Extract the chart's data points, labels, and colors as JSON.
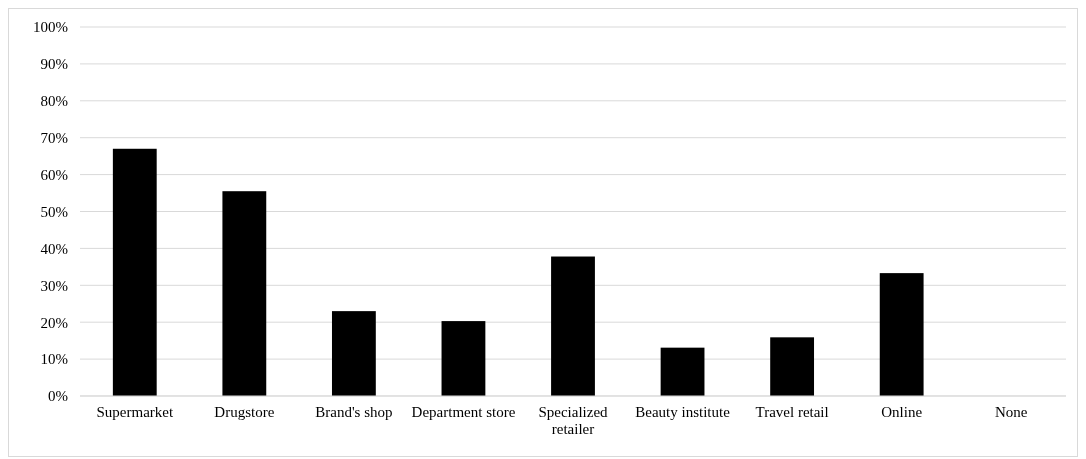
{
  "chart_data": {
    "type": "bar",
    "categories": [
      "Supermarket",
      "Drugstore",
      "Brand's shop",
      "Department store",
      "Specialized retailer",
      "Beauty institute",
      "Travel retail",
      "Online",
      "None"
    ],
    "values": [
      67,
      55.5,
      23,
      20.3,
      37.8,
      13.1,
      15.9,
      33.3,
      0
    ],
    "color": "#000000",
    "ylim": [
      0,
      100
    ],
    "yticks": [
      {
        "value": 0,
        "label": "0%"
      },
      {
        "value": 10,
        "label": "10%"
      },
      {
        "value": 20,
        "label": "20%"
      },
      {
        "value": 30,
        "label": "30%"
      },
      {
        "value": 40,
        "label": "40%"
      },
      {
        "value": 50,
        "label": "50%"
      },
      {
        "value": 60,
        "label": "60%"
      },
      {
        "value": 70,
        "label": "70%"
      },
      {
        "value": 80,
        "label": "80%"
      },
      {
        "value": 90,
        "label": "90%"
      },
      {
        "value": 100,
        "label": "100%"
      }
    ],
    "grid": "y"
  }
}
